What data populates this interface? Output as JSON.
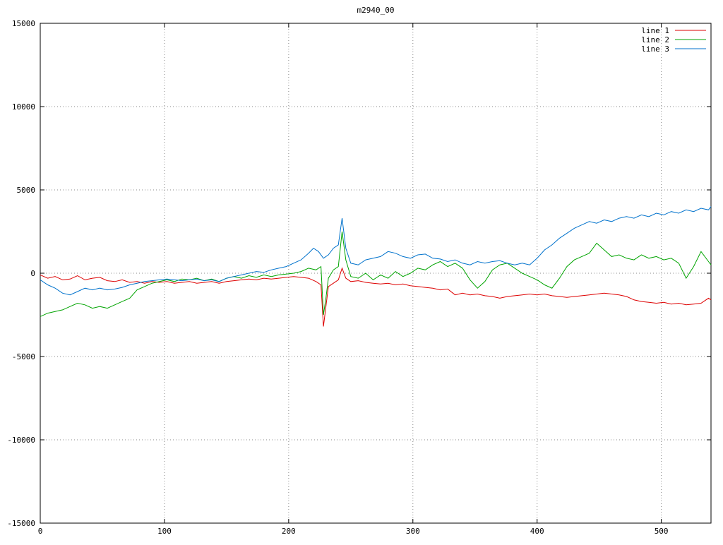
{
  "chart_data": {
    "type": "line",
    "title": "m2940_00",
    "xlabel": "",
    "ylabel": "",
    "xlim": [
      0,
      540
    ],
    "ylim": [
      -15000,
      15000
    ],
    "xticks": [
      0,
      100,
      200,
      300,
      400,
      500
    ],
    "yticks": [
      -15000,
      -10000,
      -5000,
      0,
      5000,
      10000,
      15000
    ],
    "grid": "dotted",
    "grid_color": "#8a8a8a",
    "border_color": "#000000",
    "legend_position": "top-right",
    "series": [
      {
        "name": "line 1",
        "color": "#dd0000",
        "points": [
          [
            0,
            -100
          ],
          [
            6,
            -300
          ],
          [
            12,
            -200
          ],
          [
            18,
            -400
          ],
          [
            24,
            -350
          ],
          [
            30,
            -150
          ],
          [
            36,
            -400
          ],
          [
            42,
            -300
          ],
          [
            48,
            -250
          ],
          [
            54,
            -450
          ],
          [
            60,
            -500
          ],
          [
            66,
            -400
          ],
          [
            72,
            -550
          ],
          [
            78,
            -500
          ],
          [
            84,
            -600
          ],
          [
            90,
            -500
          ],
          [
            96,
            -550
          ],
          [
            102,
            -500
          ],
          [
            108,
            -600
          ],
          [
            114,
            -550
          ],
          [
            120,
            -500
          ],
          [
            126,
            -600
          ],
          [
            132,
            -550
          ],
          [
            138,
            -500
          ],
          [
            144,
            -600
          ],
          [
            150,
            -500
          ],
          [
            156,
            -450
          ],
          [
            162,
            -400
          ],
          [
            168,
            -350
          ],
          [
            174,
            -400
          ],
          [
            180,
            -300
          ],
          [
            186,
            -350
          ],
          [
            192,
            -300
          ],
          [
            198,
            -250
          ],
          [
            204,
            -200
          ],
          [
            210,
            -250
          ],
          [
            216,
            -300
          ],
          [
            222,
            -500
          ],
          [
            226,
            -700
          ],
          [
            228,
            -3200
          ],
          [
            230,
            -2000
          ],
          [
            232,
            -800
          ],
          [
            236,
            -600
          ],
          [
            240,
            -400
          ],
          [
            243,
            300
          ],
          [
            246,
            -300
          ],
          [
            250,
            -500
          ],
          [
            256,
            -450
          ],
          [
            262,
            -550
          ],
          [
            268,
            -600
          ],
          [
            274,
            -650
          ],
          [
            280,
            -600
          ],
          [
            286,
            -700
          ],
          [
            292,
            -650
          ],
          [
            298,
            -750
          ],
          [
            304,
            -800
          ],
          [
            310,
            -850
          ],
          [
            316,
            -900
          ],
          [
            322,
            -1000
          ],
          [
            328,
            -950
          ],
          [
            334,
            -1300
          ],
          [
            340,
            -1200
          ],
          [
            346,
            -1300
          ],
          [
            352,
            -1250
          ],
          [
            358,
            -1350
          ],
          [
            364,
            -1400
          ],
          [
            370,
            -1500
          ],
          [
            376,
            -1400
          ],
          [
            382,
            -1350
          ],
          [
            388,
            -1300
          ],
          [
            394,
            -1250
          ],
          [
            400,
            -1300
          ],
          [
            406,
            -1250
          ],
          [
            412,
            -1350
          ],
          [
            418,
            -1400
          ],
          [
            424,
            -1450
          ],
          [
            430,
            -1400
          ],
          [
            436,
            -1350
          ],
          [
            442,
            -1300
          ],
          [
            448,
            -1250
          ],
          [
            454,
            -1200
          ],
          [
            460,
            -1250
          ],
          [
            466,
            -1300
          ],
          [
            472,
            -1400
          ],
          [
            478,
            -1600
          ],
          [
            484,
            -1700
          ],
          [
            490,
            -1750
          ],
          [
            496,
            -1800
          ],
          [
            502,
            -1750
          ],
          [
            508,
            -1850
          ],
          [
            514,
            -1800
          ],
          [
            520,
            -1900
          ],
          [
            526,
            -1850
          ],
          [
            532,
            -1800
          ],
          [
            538,
            -1500
          ],
          [
            540,
            -1600
          ]
        ]
      },
      {
        "name": "line 2",
        "color": "#00a400",
        "points": [
          [
            0,
            -2600
          ],
          [
            6,
            -2400
          ],
          [
            12,
            -2300
          ],
          [
            18,
            -2200
          ],
          [
            24,
            -2000
          ],
          [
            30,
            -1800
          ],
          [
            36,
            -1900
          ],
          [
            42,
            -2100
          ],
          [
            48,
            -2000
          ],
          [
            54,
            -2100
          ],
          [
            60,
            -1900
          ],
          [
            66,
            -1700
          ],
          [
            72,
            -1500
          ],
          [
            78,
            -1000
          ],
          [
            84,
            -800
          ],
          [
            90,
            -600
          ],
          [
            96,
            -500
          ],
          [
            102,
            -400
          ],
          [
            108,
            -500
          ],
          [
            114,
            -350
          ],
          [
            120,
            -400
          ],
          [
            126,
            -300
          ],
          [
            132,
            -450
          ],
          [
            138,
            -350
          ],
          [
            144,
            -500
          ],
          [
            150,
            -300
          ],
          [
            156,
            -200
          ],
          [
            162,
            -300
          ],
          [
            168,
            -150
          ],
          [
            174,
            -250
          ],
          [
            180,
            -100
          ],
          [
            186,
            -200
          ],
          [
            192,
            -100
          ],
          [
            198,
            -50
          ],
          [
            204,
            0
          ],
          [
            210,
            100
          ],
          [
            216,
            300
          ],
          [
            222,
            200
          ],
          [
            226,
            400
          ],
          [
            228,
            -2500
          ],
          [
            230,
            -1500
          ],
          [
            232,
            -300
          ],
          [
            236,
            200
          ],
          [
            240,
            400
          ],
          [
            243,
            2500
          ],
          [
            246,
            800
          ],
          [
            250,
            -200
          ],
          [
            256,
            -300
          ],
          [
            262,
            0
          ],
          [
            268,
            -400
          ],
          [
            274,
            -100
          ],
          [
            280,
            -300
          ],
          [
            286,
            100
          ],
          [
            292,
            -200
          ],
          [
            298,
            0
          ],
          [
            304,
            300
          ],
          [
            310,
            200
          ],
          [
            316,
            500
          ],
          [
            322,
            700
          ],
          [
            328,
            400
          ],
          [
            334,
            600
          ],
          [
            340,
            300
          ],
          [
            346,
            -400
          ],
          [
            352,
            -900
          ],
          [
            358,
            -500
          ],
          [
            364,
            200
          ],
          [
            370,
            500
          ],
          [
            376,
            600
          ],
          [
            382,
            300
          ],
          [
            388,
            0
          ],
          [
            394,
            -200
          ],
          [
            400,
            -400
          ],
          [
            406,
            -700
          ],
          [
            412,
            -900
          ],
          [
            418,
            -300
          ],
          [
            424,
            400
          ],
          [
            430,
            800
          ],
          [
            436,
            1000
          ],
          [
            442,
            1200
          ],
          [
            448,
            1800
          ],
          [
            454,
            1400
          ],
          [
            460,
            1000
          ],
          [
            466,
            1100
          ],
          [
            472,
            900
          ],
          [
            478,
            800
          ],
          [
            484,
            1100
          ],
          [
            490,
            900
          ],
          [
            496,
            1000
          ],
          [
            502,
            800
          ],
          [
            508,
            900
          ],
          [
            514,
            600
          ],
          [
            520,
            -300
          ],
          [
            526,
            400
          ],
          [
            532,
            1300
          ],
          [
            538,
            700
          ],
          [
            540,
            500
          ]
        ]
      },
      {
        "name": "line 3",
        "color": "#0072cc",
        "points": [
          [
            0,
            -400
          ],
          [
            6,
            -700
          ],
          [
            12,
            -900
          ],
          [
            18,
            -1200
          ],
          [
            24,
            -1300
          ],
          [
            30,
            -1100
          ],
          [
            36,
            -900
          ],
          [
            42,
            -1000
          ],
          [
            48,
            -900
          ],
          [
            54,
            -1000
          ],
          [
            60,
            -950
          ],
          [
            66,
            -850
          ],
          [
            72,
            -700
          ],
          [
            78,
            -600
          ],
          [
            84,
            -500
          ],
          [
            90,
            -450
          ],
          [
            96,
            -400
          ],
          [
            102,
            -350
          ],
          [
            108,
            -400
          ],
          [
            114,
            -450
          ],
          [
            120,
            -400
          ],
          [
            126,
            -350
          ],
          [
            132,
            -450
          ],
          [
            138,
            -400
          ],
          [
            144,
            -500
          ],
          [
            150,
            -300
          ],
          [
            156,
            -200
          ],
          [
            162,
            -100
          ],
          [
            168,
            0
          ],
          [
            174,
            100
          ],
          [
            180,
            50
          ],
          [
            186,
            200
          ],
          [
            192,
            300
          ],
          [
            198,
            400
          ],
          [
            204,
            600
          ],
          [
            210,
            800
          ],
          [
            216,
            1200
          ],
          [
            220,
            1500
          ],
          [
            224,
            1300
          ],
          [
            228,
            900
          ],
          [
            232,
            1100
          ],
          [
            236,
            1500
          ],
          [
            240,
            1700
          ],
          [
            243,
            3300
          ],
          [
            246,
            1500
          ],
          [
            250,
            600
          ],
          [
            256,
            500
          ],
          [
            262,
            800
          ],
          [
            268,
            900
          ],
          [
            274,
            1000
          ],
          [
            280,
            1300
          ],
          [
            286,
            1200
          ],
          [
            292,
            1000
          ],
          [
            298,
            900
          ],
          [
            304,
            1100
          ],
          [
            310,
            1150
          ],
          [
            316,
            900
          ],
          [
            322,
            850
          ],
          [
            328,
            700
          ],
          [
            334,
            800
          ],
          [
            340,
            600
          ],
          [
            346,
            500
          ],
          [
            352,
            700
          ],
          [
            358,
            600
          ],
          [
            364,
            700
          ],
          [
            370,
            750
          ],
          [
            376,
            600
          ],
          [
            382,
            500
          ],
          [
            388,
            600
          ],
          [
            394,
            500
          ],
          [
            400,
            900
          ],
          [
            406,
            1400
          ],
          [
            412,
            1700
          ],
          [
            418,
            2100
          ],
          [
            424,
            2400
          ],
          [
            430,
            2700
          ],
          [
            436,
            2900
          ],
          [
            442,
            3100
          ],
          [
            448,
            3000
          ],
          [
            454,
            3200
          ],
          [
            460,
            3100
          ],
          [
            466,
            3300
          ],
          [
            472,
            3400
          ],
          [
            478,
            3300
          ],
          [
            484,
            3500
          ],
          [
            490,
            3400
          ],
          [
            496,
            3600
          ],
          [
            502,
            3500
          ],
          [
            508,
            3700
          ],
          [
            514,
            3600
          ],
          [
            520,
            3800
          ],
          [
            526,
            3700
          ],
          [
            532,
            3900
          ],
          [
            538,
            3800
          ],
          [
            540,
            4000
          ]
        ]
      }
    ]
  }
}
